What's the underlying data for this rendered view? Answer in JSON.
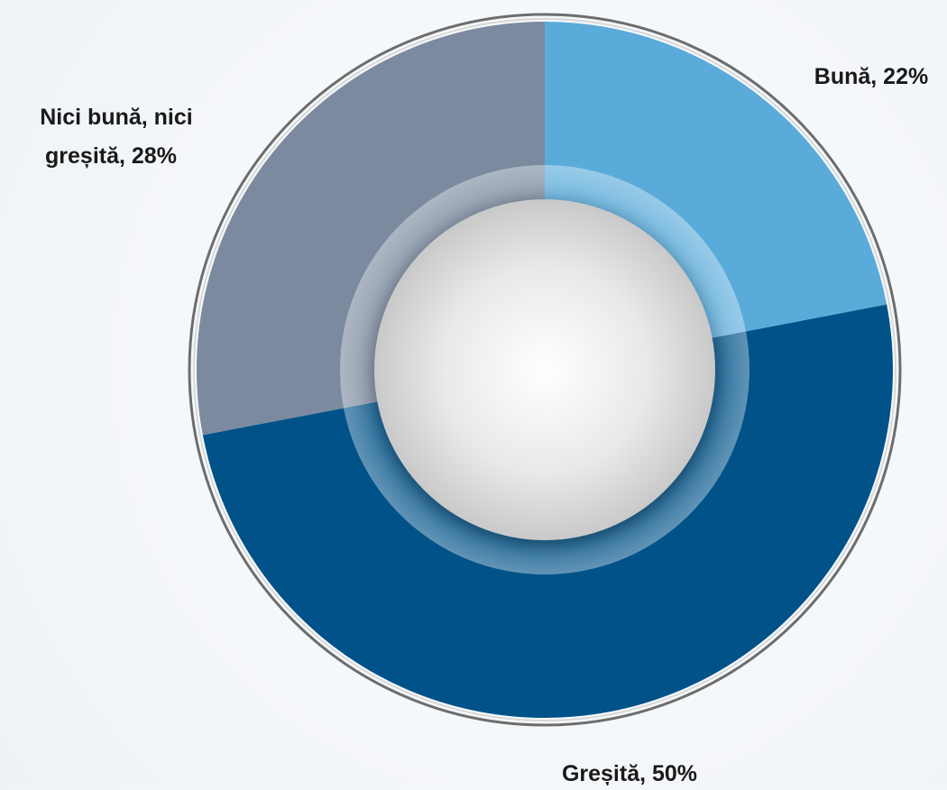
{
  "chart_data": {
    "type": "pie",
    "variant": "donut",
    "title": "",
    "series": [
      {
        "name": "",
        "slices": [
          {
            "label": "Bună",
            "value": 22,
            "display": "Bună, 22%",
            "color": "#5aabda"
          },
          {
            "label": "Greșită",
            "value": 50,
            "display": "Greșită, 50%",
            "color": "#005289"
          },
          {
            "label": "Nici bună, nici greșită",
            "value": 28,
            "display_lines": [
              "Nici bună, nici",
              "greșită, 28%"
            ],
            "color": "#7b8a9f"
          }
        ]
      }
    ],
    "start_angle": "top (12 o'clock), clockwise",
    "legend": "none (labels placed next to slices)"
  }
}
